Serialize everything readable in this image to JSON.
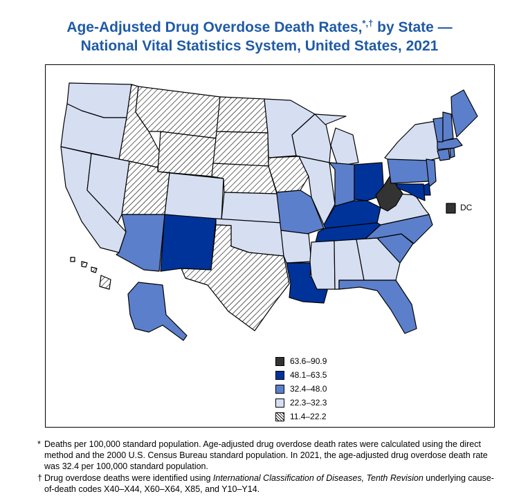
{
  "title_line1": "Age-Adjusted Drug Overdose Death Rates,",
  "title_marks": "*,†",
  "title_line1_end": " by State —",
  "title_line2": "National Vital Statistics System, United States, 2021",
  "dc_label": "DC",
  "colors": {
    "c5": "#333333",
    "c4": "#00339a",
    "c3": "#5b7fcb",
    "c2": "#d6def2",
    "c1": "hatch"
  },
  "legend": [
    {
      "range": "63.6–90.9",
      "class": "c5"
    },
    {
      "range": "48.1–63.5",
      "class": "c4"
    },
    {
      "range": "32.4–48.0",
      "class": "c3"
    },
    {
      "range": "22.3–32.3",
      "class": "c2"
    },
    {
      "range": "11.4–22.2",
      "class": "c1"
    }
  ],
  "states": {
    "WA": "c2",
    "OR": "c2",
    "CA": "c2",
    "NV": "c2",
    "ID": "c1",
    "MT": "c1",
    "WY": "c1",
    "UT": "c1",
    "AZ": "c3",
    "NM": "c4",
    "CO": "c2",
    "ND": "c1",
    "SD": "c1",
    "NE": "c1",
    "KS": "c2",
    "OK": "c2",
    "TX": "c1",
    "MN": "c2",
    "IA": "c1",
    "MO": "c3",
    "AR": "c2",
    "LA": "c4",
    "WI": "c2",
    "IL": "c2",
    "MI": "c2",
    "IN": "c3",
    "OH": "c4",
    "KY": "c4",
    "TN": "c4",
    "MS": "c2",
    "AL": "c2",
    "GA": "c2",
    "FL": "c3",
    "SC": "c3",
    "NC": "c3",
    "VA": "c2",
    "WV": "c5",
    "PA": "c3",
    "NY": "c2",
    "ME": "c3",
    "NH": "c3",
    "VT": "c3",
    "MA": "c3",
    "CT": "c3",
    "RI": "c3",
    "NJ": "c3",
    "DE": "c4",
    "MD": "c4",
    "DC": "c5",
    "AK": "c3",
    "HI": "c1"
  },
  "footnote1_mark": "*",
  "footnote1": "Deaths per 100,000 standard population. Age-adjusted drug overdose death rates were calculated using the direct method and the 2000 U.S. Census Bureau standard population. In 2021, the age-adjusted drug overdose death rate was 32.4 per 100,000 standard population.",
  "footnote2_mark": "†",
  "footnote2_pre": "Drug overdose deaths were identified using ",
  "footnote2_italic": "International Classification of Diseases, Tenth Revision",
  "footnote2_post": " underlying cause-of-death codes X40–X44, X60–X64, X85, and Y10–Y14."
}
